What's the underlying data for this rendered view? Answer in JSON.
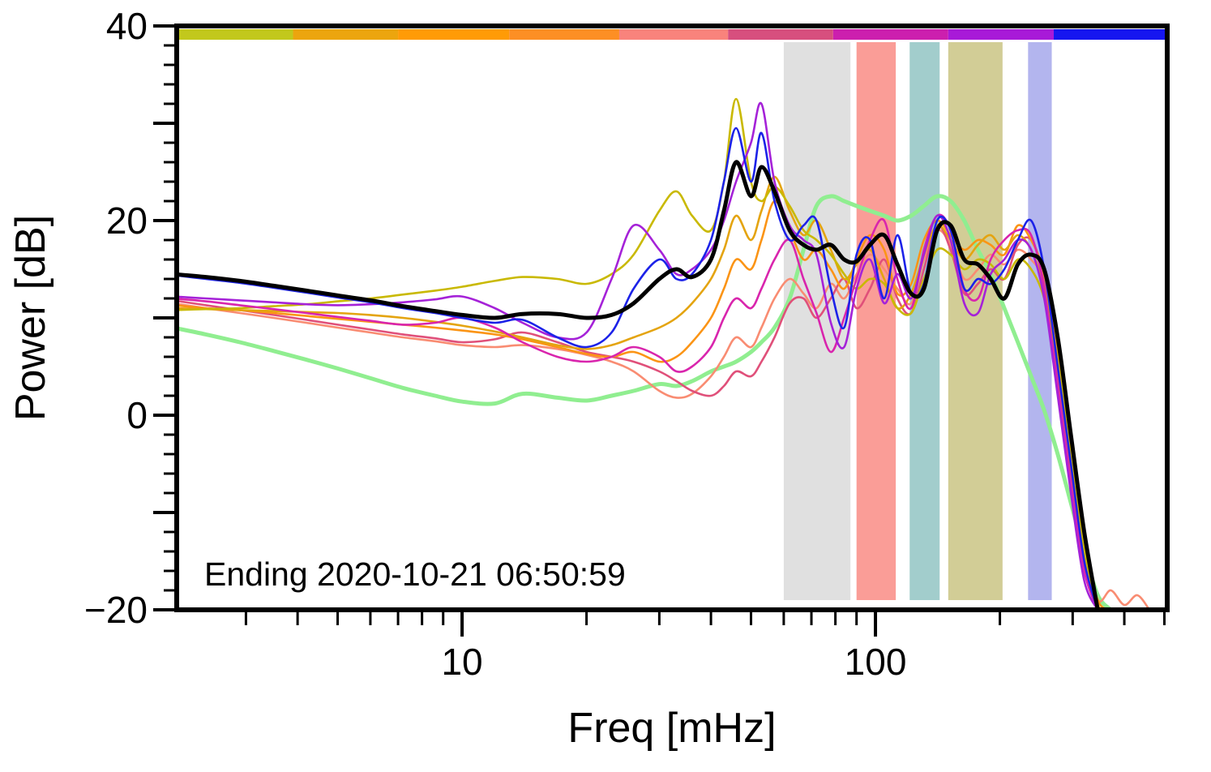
{
  "chart_data": {
    "type": "line",
    "title": "",
    "xlabel": "Freq [mHz]",
    "ylabel": "Power [dB]",
    "annotation": "Ending 2020-10-21 06:50:59",
    "x_scale": "log",
    "x_range": [
      2.04,
      508
    ],
    "y_range": [
      -20,
      40
    ],
    "grid": false,
    "legend": "none",
    "x_axis": {
      "major_ticks": [
        {
          "value": 10,
          "label": "10"
        },
        {
          "value": 100,
          "label": "100"
        }
      ],
      "minor_ticks": [
        3,
        4,
        5,
        6,
        7,
        8,
        9,
        20,
        30,
        40,
        50,
        60,
        70,
        80,
        90,
        200,
        300,
        400,
        500
      ]
    },
    "y_axis": {
      "major_ticks": [
        {
          "value": -20,
          "label": "−20"
        },
        {
          "value": 0,
          "label": "0"
        },
        {
          "value": 20,
          "label": "20"
        },
        {
          "value": 40,
          "label": "40"
        }
      ],
      "mid_ticks": [
        -10,
        10,
        30
      ],
      "minor_ticks": [
        -18,
        -16,
        -14,
        -12,
        -8,
        -6,
        -4,
        -2,
        2,
        4,
        6,
        8,
        12,
        14,
        16,
        18,
        22,
        24,
        26,
        28,
        32,
        34,
        36,
        38
      ]
    },
    "colorbar": [
      {
        "from": 2.04,
        "to": 3.9,
        "color": "#c2c81c"
      },
      {
        "from": 3.9,
        "to": 7.0,
        "color": "#eca50e"
      },
      {
        "from": 7.0,
        "to": 13.0,
        "color": "#ff9b06"
      },
      {
        "from": 13.0,
        "to": 24.0,
        "color": "#fd8f24"
      },
      {
        "from": 24.0,
        "to": 44.0,
        "color": "#f9837c"
      },
      {
        "from": 44.0,
        "to": 79.0,
        "color": "#d74f7e"
      },
      {
        "from": 79.0,
        "to": 150.0,
        "color": "#cc1fae"
      },
      {
        "from": 150.0,
        "to": 270.0,
        "color": "#a81ad8"
      },
      {
        "from": 270.0,
        "to": 508.0,
        "color": "#1616f0"
      }
    ],
    "bands": [
      {
        "from": 60,
        "to": 87,
        "color": "#e0e0e0"
      },
      {
        "from": 90,
        "to": 112,
        "color": "#fa9d97"
      },
      {
        "from": 121,
        "to": 143,
        "color": "#a2cdcc"
      },
      {
        "from": 150,
        "to": 203,
        "color": "#d2cd96"
      },
      {
        "from": 234,
        "to": 267,
        "color": "#b3b5ee"
      }
    ],
    "x": [
      2,
      2.4,
      2.9,
      3.5,
      4.2,
      5,
      6,
      7.2,
      8.6,
      10,
      12,
      14,
      17,
      20,
      23,
      26,
      30,
      33,
      36,
      40,
      43,
      46,
      50,
      53,
      57,
      62,
      67,
      72,
      78,
      84,
      90,
      97,
      105,
      113,
      122,
      131,
      141,
      152,
      164,
      177,
      190,
      205,
      221,
      238,
      256,
      276,
      297,
      320,
      345,
      371,
      400,
      430,
      460
    ],
    "series": [
      {
        "name": "green",
        "color": "#90ee90",
        "width": 5,
        "values": [
          9.0,
          8.3,
          7.5,
          6.6,
          5.7,
          4.8,
          3.8,
          2.8,
          2.0,
          1.4,
          1.2,
          2.2,
          1.8,
          1.5,
          2.0,
          2.5,
          3.2,
          3.0,
          3.5,
          4.5,
          5.0,
          5.5,
          6.5,
          7.5,
          9.0,
          12.0,
          17.0,
          21.5,
          22.5,
          22.0,
          21.5,
          21.0,
          20.5,
          20.0,
          20.5,
          21.5,
          22.5,
          22.0,
          20.0,
          17.0,
          14.5,
          11.0,
          7.5,
          4.0,
          0.5,
          -4.0,
          -9.0,
          -14.0,
          -18.5,
          -20.0,
          null,
          null,
          null
        ]
      },
      {
        "name": "salmon",
        "color": "#f98c72",
        "width": 2.6,
        "values": [
          11.5,
          11.0,
          10.5,
          10.0,
          9.5,
          9.0,
          8.5,
          8.0,
          7.6,
          7.2,
          7.0,
          7.2,
          6.8,
          6.2,
          5.5,
          4.5,
          2.5,
          1.8,
          2.2,
          4.0,
          6.0,
          8.0,
          7.0,
          9.0,
          12.0,
          14.0,
          12.5,
          11.0,
          13.5,
          12.0,
          14.5,
          16.5,
          15.0,
          13.0,
          11.5,
          16.0,
          19.0,
          17.5,
          14.0,
          15.0,
          16.5,
          15.5,
          17.0,
          16.0,
          13.5,
          5.0,
          -5.0,
          -14.0,
          -19.0,
          -18.0,
          -19.5,
          -18.5,
          -20.0
        ]
      },
      {
        "name": "crimson",
        "color": "#e0507a",
        "width": 2.6,
        "values": [
          11.8,
          11.3,
          10.8,
          10.3,
          9.8,
          9.3,
          8.8,
          8.3,
          7.9,
          7.5,
          7.8,
          8.5,
          7.5,
          6.5,
          6.0,
          5.5,
          4.5,
          3.5,
          2.5,
          2.0,
          3.0,
          4.5,
          4.0,
          5.5,
          8.0,
          11.5,
          12.0,
          10.0,
          12.0,
          14.0,
          11.0,
          13.0,
          16.0,
          12.0,
          10.5,
          15.0,
          19.5,
          17.0,
          12.5,
          13.5,
          15.0,
          14.0,
          17.5,
          18.0,
          14.0,
          4.0,
          -6.0,
          -15.0,
          -20.0,
          null,
          null,
          null,
          null
        ]
      },
      {
        "name": "orange",
        "color": "#fb9415",
        "width": 2.6,
        "values": [
          11.3,
          11.0,
          10.8,
          10.5,
          10.2,
          9.9,
          9.6,
          9.3,
          9.0,
          8.7,
          8.3,
          7.8,
          7.0,
          6.3,
          6.0,
          6.5,
          5.5,
          6.0,
          7.5,
          10.0,
          13.0,
          16.0,
          15.0,
          18.0,
          22.0,
          19.0,
          16.0,
          17.0,
          15.0,
          13.0,
          16.0,
          18.5,
          17.0,
          12.5,
          13.5,
          18.0,
          20.0,
          18.5,
          17.0,
          18.0,
          17.5,
          16.5,
          19.5,
          18.0,
          14.5,
          7.0,
          -3.0,
          -13.0,
          -19.0,
          -20.0,
          null,
          null,
          null
        ]
      },
      {
        "name": "goldenrod",
        "color": "#e4a410",
        "width": 2.6,
        "values": [
          11.0,
          10.9,
          10.8,
          10.7,
          10.6,
          10.5,
          10.3,
          10.0,
          9.6,
          9.2,
          8.6,
          8.0,
          7.2,
          6.8,
          7.2,
          8.0,
          9.0,
          10.0,
          11.5,
          14.0,
          17.0,
          20.5,
          18.0,
          21.0,
          24.5,
          21.0,
          18.5,
          20.0,
          17.0,
          14.0,
          15.5,
          17.0,
          14.0,
          11.0,
          12.5,
          16.5,
          19.5,
          18.0,
          16.0,
          17.5,
          18.5,
          17.0,
          18.5,
          17.0,
          13.0,
          6.0,
          -4.0,
          -13.5,
          -19.5,
          -20.0,
          null,
          null,
          null
        ]
      },
      {
        "name": "olive",
        "color": "#c9b902",
        "width": 2.6,
        "values": [
          10.8,
          10.9,
          11.0,
          11.2,
          11.4,
          11.7,
          12.0,
          12.4,
          12.8,
          13.2,
          13.8,
          14.2,
          14.0,
          13.5,
          14.5,
          16.5,
          21.0,
          23.0,
          20.5,
          19.0,
          24.0,
          32.5,
          24.0,
          22.0,
          23.5,
          21.5,
          19.0,
          18.0,
          16.5,
          14.5,
          13.0,
          14.0,
          13.5,
          11.0,
          10.5,
          14.0,
          17.0,
          16.5,
          15.0,
          16.0,
          15.5,
          14.0,
          16.0,
          15.0,
          12.0,
          5.5,
          -4.5,
          -14.0,
          -19.5,
          null,
          null,
          null,
          null
        ]
      },
      {
        "name": "magenta",
        "color": "#d925ad",
        "width": 2.6,
        "values": [
          12.0,
          11.7,
          11.3,
          10.9,
          10.5,
          10.1,
          9.7,
          9.3,
          9.5,
          10.0,
          9.0,
          7.5,
          6.0,
          5.5,
          6.0,
          7.0,
          6.0,
          4.5,
          5.0,
          7.0,
          10.0,
          12.0,
          11.0,
          13.0,
          16.0,
          18.0,
          14.0,
          10.5,
          6.5,
          10.0,
          14.0,
          18.0,
          20.0,
          14.0,
          11.0,
          17.0,
          20.5,
          19.0,
          13.0,
          12.0,
          16.0,
          18.0,
          19.0,
          18.5,
          13.0,
          3.0,
          -7.0,
          -16.0,
          -20.0,
          null,
          null,
          null,
          null
        ]
      },
      {
        "name": "purple",
        "color": "#a522d8",
        "width": 2.6,
        "values": [
          12.2,
          12.0,
          11.8,
          11.6,
          11.4,
          11.3,
          11.4,
          11.6,
          11.9,
          12.2,
          11.0,
          9.5,
          8.0,
          8.5,
          14.0,
          19.5,
          17.0,
          14.5,
          15.0,
          17.0,
          20.0,
          24.0,
          28.0,
          32.0,
          24.0,
          19.5,
          18.0,
          16.5,
          9.5,
          7.0,
          13.0,
          16.0,
          11.5,
          14.5,
          12.0,
          16.5,
          20.5,
          18.0,
          11.5,
          10.5,
          14.5,
          16.0,
          18.0,
          17.0,
          12.0,
          2.0,
          -8.0,
          -17.0,
          -20.0,
          null,
          null,
          null,
          null
        ]
      },
      {
        "name": "blue",
        "color": "#1c22e8",
        "width": 2.6,
        "values": [
          14.4,
          14.0,
          13.6,
          13.1,
          12.6,
          12.1,
          11.6,
          11.0,
          10.5,
          10.0,
          9.5,
          9.8,
          8.0,
          7.0,
          8.5,
          13.0,
          16.0,
          14.0,
          14.5,
          18.0,
          24.0,
          29.5,
          24.0,
          29.0,
          22.0,
          18.0,
          19.5,
          20.0,
          13.0,
          9.0,
          16.5,
          18.0,
          12.0,
          18.5,
          12.5,
          13.5,
          20.0,
          19.0,
          13.0,
          14.0,
          13.5,
          15.0,
          18.0,
          20.0,
          15.0,
          5.0,
          -5.0,
          -15.0,
          -20.0,
          null,
          null,
          null,
          null
        ]
      },
      {
        "name": "black",
        "color": "#000000",
        "width": 5,
        "values": [
          14.5,
          14.2,
          13.8,
          13.3,
          12.8,
          12.3,
          11.8,
          11.2,
          10.7,
          10.3,
          10.0,
          10.4,
          10.4,
          10.0,
          10.3,
          11.5,
          14.0,
          15.0,
          14.2,
          16.0,
          21.0,
          26.0,
          22.5,
          25.5,
          23.0,
          19.0,
          17.5,
          17.0,
          17.5,
          16.0,
          15.8,
          17.5,
          18.5,
          15.5,
          12.5,
          13.0,
          19.0,
          19.5,
          16.0,
          15.5,
          14.0,
          12.0,
          15.5,
          16.5,
          15.0,
          8.0,
          -2.0,
          -12.0,
          -20.0,
          null,
          null,
          null,
          null
        ]
      }
    ]
  }
}
